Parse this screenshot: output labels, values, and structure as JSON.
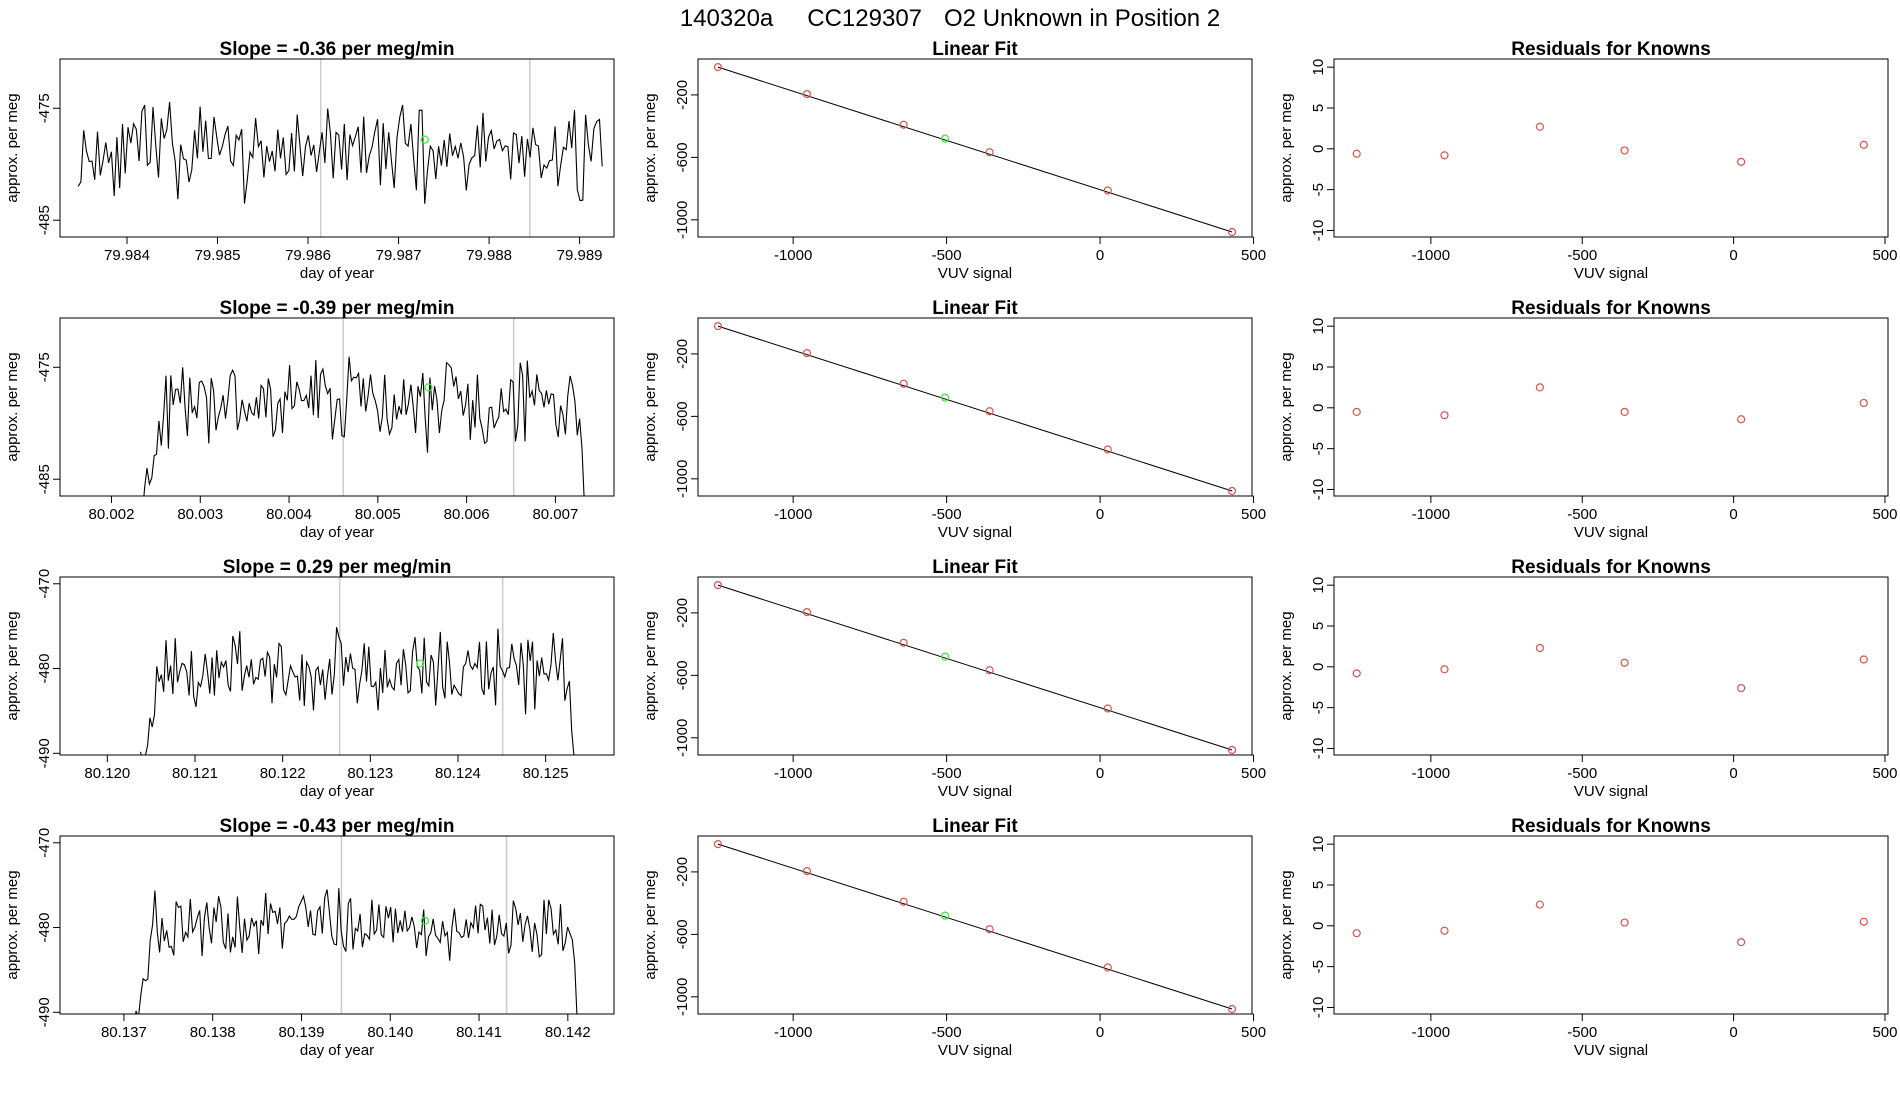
{
  "figure": {
    "sample_id": "140320a",
    "cylinder": "CC129307",
    "description": "O2 Unknown in Position  2"
  },
  "chart_data": [
    {
      "type": "line",
      "row": 1,
      "col": 1,
      "title": "Slope =  -0.36  per meg/min",
      "xlabel": "day of year",
      "ylabel": "approx. per meg",
      "xlim": [
        79.98326,
        79.98938
      ],
      "ylim": [
        -486.5,
        -470.6
      ],
      "xticks": [
        79.984,
        79.985,
        79.986,
        79.987,
        79.988,
        79.989
      ],
      "xtick_labels": [
        "79.984",
        "79.985",
        "79.986",
        "79.987",
        "79.988",
        "79.989"
      ],
      "yticks": [
        -475,
        -485
      ],
      "ytick_labels": [
        "-475",
        "-485"
      ],
      "vlines": [
        79.98614,
        79.98845
      ],
      "trace": {
        "x_start": 79.98346,
        "x_end": 79.98925,
        "mean": -478.8,
        "amplitude": 3.0,
        "seed": 11,
        "lead_in": 0,
        "tail_drop": 0
      },
      "unknown_point": {
        "x": 79.98729,
        "y": -477.8
      }
    },
    {
      "type": "scatter",
      "row": 1,
      "col": 2,
      "title": "Linear Fit",
      "xlabel": "VUV signal",
      "ylabel": "approx. per meg",
      "xlim": [
        -1310,
        495
      ],
      "ylim": [
        -1110,
        30
      ],
      "xticks": [
        -1000,
        -500,
        0,
        500
      ],
      "xtick_labels": [
        "-1000",
        "-500",
        "0",
        "500"
      ],
      "yticks": [
        -200,
        -600,
        -1000
      ],
      "ytick_labels": [
        "-200",
        "-600",
        "-1000"
      ],
      "fit_line": {
        "x": [
          -1245,
          430
        ],
        "y": [
          -22,
          -1078
        ]
      },
      "knowns": {
        "x": [
          -1245,
          -955,
          -640,
          -360,
          25,
          430
        ],
        "y": [
          -22,
          -195,
          -391,
          -567,
          -812,
          -1078
        ]
      },
      "unknown_point": {
        "x": -505,
        "y": -480
      }
    },
    {
      "type": "scatter",
      "row": 1,
      "col": 3,
      "title": "Residuals for Knowns",
      "xlabel": "VUV signal",
      "ylabel": "approx. per meg",
      "xlim": [
        -1320,
        510
      ],
      "ylim": [
        -10.8,
        11
      ],
      "xticks": [
        -1000,
        -500,
        0,
        500
      ],
      "xtick_labels": [
        "-1000",
        "-500",
        "0",
        "500"
      ],
      "yticks": [
        10,
        5,
        0,
        -5,
        -10
      ],
      "ytick_labels": [
        "10",
        "5",
        "0",
        "-5",
        "-10"
      ],
      "points": {
        "x": [
          -1245,
          -955,
          -640,
          -360,
          25,
          430
        ],
        "y": [
          -0.6,
          -0.8,
          2.7,
          -0.2,
          -1.6,
          0.5
        ]
      }
    },
    {
      "type": "line",
      "row": 2,
      "col": 1,
      "title": "Slope =  -0.39  per meg/min",
      "xlabel": "day of year",
      "ylabel": "approx. per meg",
      "xlim": [
        80.00142,
        80.00766
      ],
      "ylim": [
        -486.5,
        -470.6
      ],
      "xticks": [
        80.002,
        80.003,
        80.004,
        80.005,
        80.006,
        80.007
      ],
      "xtick_labels": [
        "80.002",
        "80.003",
        "80.004",
        "80.005",
        "80.006",
        "80.007"
      ],
      "yticks": [
        -475,
        -485
      ],
      "ytick_labels": [
        "-475",
        "-485"
      ],
      "vlines": [
        80.00461,
        80.00653
      ],
      "trace": {
        "x_start": 80.00232,
        "x_end": 80.00738,
        "mean": -478.3,
        "amplitude": 2.8,
        "seed": 23,
        "lead_in": 8,
        "tail_drop": 4
      },
      "unknown_point": {
        "x": 80.00557,
        "y": -476.8
      }
    },
    {
      "type": "scatter",
      "row": 2,
      "col": 2,
      "title": "Linear Fit",
      "xlabel": "VUV signal",
      "ylabel": "approx. per meg",
      "xlim": [
        -1310,
        495
      ],
      "ylim": [
        -1110,
        30
      ],
      "xticks": [
        -1000,
        -500,
        0,
        500
      ],
      "xtick_labels": [
        "-1000",
        "-500",
        "0",
        "500"
      ],
      "yticks": [
        -200,
        -600,
        -1000
      ],
      "ytick_labels": [
        "-200",
        "-600",
        "-1000"
      ],
      "fit_line": {
        "x": [
          -1245,
          430
        ],
        "y": [
          -22,
          -1078
        ]
      },
      "knowns": {
        "x": [
          -1245,
          -955,
          -640,
          -360,
          25,
          430
        ],
        "y": [
          -22,
          -195,
          -391,
          -567,
          -812,
          -1078
        ]
      },
      "unknown_point": {
        "x": -505,
        "y": -480
      }
    },
    {
      "type": "scatter",
      "row": 2,
      "col": 3,
      "title": "Residuals for Knowns",
      "xlabel": "VUV signal",
      "ylabel": "approx. per meg",
      "xlim": [
        -1320,
        510
      ],
      "ylim": [
        -10.8,
        11
      ],
      "xticks": [
        -1000,
        -500,
        0,
        500
      ],
      "xtick_labels": [
        "-1000",
        "-500",
        "0",
        "500"
      ],
      "yticks": [
        10,
        5,
        0,
        -5,
        -10
      ],
      "ytick_labels": [
        "10",
        "5",
        "0",
        "-5",
        "-10"
      ],
      "points": {
        "x": [
          -1245,
          -955,
          -640,
          -360,
          25,
          430
        ],
        "y": [
          -0.5,
          -0.9,
          2.5,
          -0.5,
          -1.4,
          0.6
        ]
      }
    },
    {
      "type": "line",
      "row": 3,
      "col": 1,
      "title": "Slope =  0.29  per meg/min",
      "xlabel": "day of year",
      "ylabel": "approx. per meg",
      "xlim": [
        80.11946,
        80.12578
      ],
      "ylim": [
        -490.2,
        -469.2
      ],
      "xticks": [
        80.12,
        80.121,
        80.122,
        80.123,
        80.124,
        80.125
      ],
      "xtick_labels": [
        "80.120",
        "80.121",
        "80.122",
        "80.123",
        "80.124",
        "80.125"
      ],
      "yticks": [
        -470,
        -480,
        -490
      ],
      "ytick_labels": [
        "-470",
        "-480",
        "-490"
      ],
      "vlines": [
        80.12265,
        80.12451
      ],
      "trace": {
        "x_start": 80.12038,
        "x_end": 80.12535,
        "mean": -480.3,
        "amplitude": 3.3,
        "seed": 37,
        "lead_in": 7,
        "tail_drop": 4
      },
      "unknown_point": {
        "x": 80.12357,
        "y": -479.4
      }
    },
    {
      "type": "scatter",
      "row": 3,
      "col": 2,
      "title": "Linear Fit",
      "xlabel": "VUV signal",
      "ylabel": "approx. per meg",
      "xlim": [
        -1310,
        495
      ],
      "ylim": [
        -1110,
        30
      ],
      "xticks": [
        -1000,
        -500,
        0,
        500
      ],
      "xtick_labels": [
        "-1000",
        "-500",
        "0",
        "500"
      ],
      "yticks": [
        -200,
        -600,
        -1000
      ],
      "ytick_labels": [
        "-200",
        "-600",
        "-1000"
      ],
      "fit_line": {
        "x": [
          -1245,
          430
        ],
        "y": [
          -22,
          -1078
        ]
      },
      "knowns": {
        "x": [
          -1245,
          -955,
          -640,
          -360,
          25,
          430
        ],
        "y": [
          -22,
          -195,
          -391,
          -567,
          -812,
          -1078
        ]
      },
      "unknown_point": {
        "x": -505,
        "y": -480
      }
    },
    {
      "type": "scatter",
      "row": 3,
      "col": 3,
      "title": "Residuals for Knowns",
      "xlabel": "VUV signal",
      "ylabel": "approx. per meg",
      "xlim": [
        -1320,
        510
      ],
      "ylim": [
        -10.8,
        11
      ],
      "xticks": [
        -1000,
        -500,
        0,
        500
      ],
      "xtick_labels": [
        "-1000",
        "-500",
        "0",
        "500"
      ],
      "yticks": [
        10,
        5,
        0,
        -5,
        -10
      ],
      "ytick_labels": [
        "10",
        "5",
        "0",
        "-5",
        "-10"
      ],
      "points": {
        "x": [
          -1245,
          -955,
          -640,
          -360,
          25,
          430
        ],
        "y": [
          -0.8,
          -0.3,
          2.3,
          0.5,
          -2.6,
          0.9
        ]
      }
    },
    {
      "type": "line",
      "row": 4,
      "col": 1,
      "title": "Slope =  -0.43  per meg/min",
      "xlabel": "day of year",
      "ylabel": "approx. per meg",
      "xlim": [
        80.13628,
        80.14252
      ],
      "ylim": [
        -490.2,
        -469.2
      ],
      "xticks": [
        80.137,
        80.138,
        80.139,
        80.14,
        80.141,
        80.142
      ],
      "xtick_labels": [
        "80.137",
        "80.138",
        "80.139",
        "80.140",
        "80.141",
        "80.142"
      ],
      "yticks": [
        -470,
        -480,
        -490
      ],
      "ytick_labels": [
        "-470",
        "-480",
        "-490"
      ],
      "vlines": [
        80.13945,
        80.14131
      ],
      "trace": {
        "x_start": 80.13711,
        "x_end": 80.14213,
        "mean": -479.8,
        "amplitude": 3.2,
        "seed": 53,
        "lead_in": 7,
        "tail_drop": 4
      },
      "unknown_point": {
        "x": 80.14039,
        "y": -479.2
      }
    },
    {
      "type": "scatter",
      "row": 4,
      "col": 2,
      "title": "Linear Fit",
      "xlabel": "VUV signal",
      "ylabel": "approx. per meg",
      "xlim": [
        -1310,
        495
      ],
      "ylim": [
        -1110,
        30
      ],
      "xticks": [
        -1000,
        -500,
        0,
        500
      ],
      "xtick_labels": [
        "-1000",
        "-500",
        "0",
        "500"
      ],
      "yticks": [
        -200,
        -600,
        -1000
      ],
      "ytick_labels": [
        "-200",
        "-600",
        "-1000"
      ],
      "fit_line": {
        "x": [
          -1245,
          430
        ],
        "y": [
          -22,
          -1078
        ]
      },
      "knowns": {
        "x": [
          -1245,
          -955,
          -640,
          -360,
          25,
          430
        ],
        "y": [
          -22,
          -195,
          -391,
          -567,
          -812,
          -1078
        ]
      },
      "unknown_point": {
        "x": -505,
        "y": -480
      }
    },
    {
      "type": "scatter",
      "row": 4,
      "col": 3,
      "title": "Residuals for Knowns",
      "xlabel": "VUV signal",
      "ylabel": "approx. per meg",
      "xlim": [
        -1320,
        510
      ],
      "ylim": [
        -10.8,
        11
      ],
      "xticks": [
        -1000,
        -500,
        0,
        500
      ],
      "xtick_labels": [
        "-1000",
        "-500",
        "0",
        "500"
      ],
      "yticks": [
        10,
        5,
        0,
        -5,
        -10
      ],
      "ytick_labels": [
        "10",
        "5",
        "0",
        "-5",
        "-10"
      ],
      "points": {
        "x": [
          -1245,
          -955,
          -640,
          -360,
          25,
          430
        ],
        "y": [
          -0.9,
          -0.6,
          2.6,
          0.4,
          -2.0,
          0.5
        ]
      }
    }
  ],
  "colors": {
    "trace": "#000000",
    "fit_line": "#000000",
    "known_point": "#d9534f",
    "unknown_point": "#33ee33",
    "vline": "#cccccc",
    "axis": "#000000"
  }
}
